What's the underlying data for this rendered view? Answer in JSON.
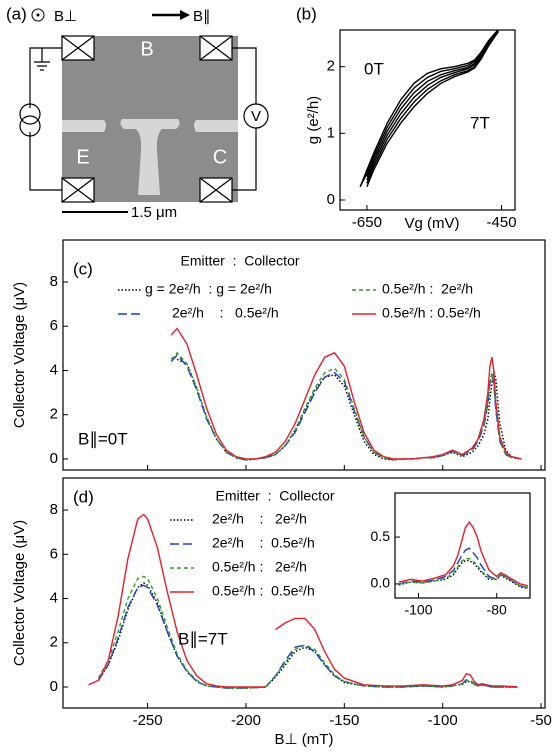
{
  "panel_a": {
    "panel_label": "(a)",
    "field_perp": "B⊥",
    "field_par": "B∥",
    "region_labels": [
      "B",
      "E",
      "C"
    ],
    "voltmeter": "V",
    "scale_bar": "1.5 μm"
  },
  "chart_data": [
    {
      "type": "line",
      "panel_label": "(b)",
      "xlabel": "Vg (mV)",
      "ylabel": "g (e²/h)",
      "annotations": [
        "0T",
        "7T"
      ],
      "x": [
        -660,
        -650,
        -640,
        -620,
        -600,
        -580,
        -560,
        -540,
        -520,
        -500,
        -490,
        -480,
        -470,
        -460,
        -455
      ],
      "xlim": [
        -690,
        -430
      ],
      "xticks": [
        -650,
        -450
      ],
      "ylim": [
        -0.15,
        2.55
      ],
      "yticks": [
        0,
        1,
        2
      ],
      "series": [
        {
          "color": "#000000",
          "line_style": "solid",
          "values": [
            0.2,
            0.45,
            0.7,
            1.15,
            1.5,
            1.75,
            1.9,
            1.97,
            2.0,
            2.05,
            2.1,
            2.22,
            2.38,
            2.5,
            2.55
          ]
        },
        {
          "color": "#000000",
          "line_style": "solid",
          "values": [
            0.2,
            0.4,
            0.65,
            1.09,
            1.43,
            1.68,
            1.84,
            1.93,
            1.97,
            2.02,
            2.08,
            2.2,
            2.36,
            2.49,
            2.55
          ]
        },
        {
          "color": "#000000",
          "line_style": "solid",
          "values": [
            null,
            0.35,
            0.6,
            1.03,
            1.36,
            1.61,
            1.78,
            1.88,
            1.94,
            1.99,
            2.05,
            2.18,
            2.35,
            2.48,
            2.54
          ]
        },
        {
          "color": "#000000",
          "line_style": "solid",
          "values": [
            null,
            0.3,
            0.55,
            0.97,
            1.29,
            1.54,
            1.72,
            1.84,
            1.91,
            1.97,
            2.03,
            2.16,
            2.33,
            2.47,
            2.53
          ]
        },
        {
          "color": "#000000",
          "line_style": "solid",
          "values": [
            null,
            0.25,
            0.5,
            0.91,
            1.22,
            1.47,
            1.66,
            1.79,
            1.88,
            1.94,
            2.0,
            2.14,
            2.31,
            2.46,
            2.52
          ]
        },
        {
          "color": "#000000",
          "line_style": "solid",
          "values": [
            null,
            0.2,
            0.45,
            0.85,
            1.15,
            1.4,
            1.6,
            1.75,
            1.85,
            1.92,
            1.98,
            2.12,
            2.3,
            2.45,
            2.52
          ]
        }
      ]
    },
    {
      "type": "line",
      "panel_label": "(c)",
      "ylabel": "Collector Voltage (μV)",
      "legend_title": "Emitter  :  Collector",
      "annotations": [
        "B∥=0T"
      ],
      "x": [
        -238,
        -235,
        -230,
        -225,
        -220,
        -215,
        -210,
        -205,
        -200,
        -195,
        -190,
        -185,
        -180,
        -175,
        -170,
        -165,
        -160,
        -155,
        -150,
        -145,
        -140,
        -135,
        -130,
        -125,
        -120,
        -115,
        -110,
        -105,
        -100,
        -95,
        -90,
        -85,
        -82,
        -79,
        -77,
        -76,
        -75,
        -74,
        -73,
        -71,
        -68,
        -65,
        -60
      ],
      "xlim": [
        -293,
        -48
      ],
      "xticks": [
        -250,
        -200,
        -150,
        -100,
        -50
      ],
      "xtick_labels": false,
      "ylim": [
        -0.5,
        9.9
      ],
      "yticks": [
        0,
        2,
        4,
        6,
        8
      ],
      "series": [
        {
          "name": "g = 2e²/h  : g = 2e²/h",
          "color": "#000000",
          "line_style": "dotted",
          "values": [
            null,
            4.5,
            4.3,
            3.2,
            1.9,
            0.9,
            0.3,
            0.05,
            -0.05,
            0.0,
            0.05,
            0.2,
            0.6,
            1.3,
            2.2,
            3.1,
            3.7,
            3.8,
            3.3,
            2.0,
            0.8,
            0.2,
            0.0,
            -0.05,
            0.0,
            0.0,
            0.05,
            0.05,
            0.15,
            0.3,
            0.1,
            0.3,
            0.6,
            1.1,
            1.8,
            2.7,
            3.4,
            4.0,
            3.6,
            1.6,
            0.4,
            0.1,
            0.0
          ]
        },
        {
          "name": "2e²/h    :   0.5e²/h",
          "color": "#1f3fcf",
          "line_style": "long-dashed",
          "values": [
            4.4,
            4.7,
            4.2,
            3.1,
            1.8,
            0.9,
            0.3,
            0.05,
            -0.05,
            0.0,
            0.05,
            0.2,
            0.6,
            1.2,
            2.1,
            3.0,
            3.7,
            3.9,
            3.5,
            2.2,
            1.0,
            0.3,
            0.05,
            -0.05,
            0.0,
            0.0,
            0.05,
            0.05,
            0.15,
            0.35,
            0.15,
            0.4,
            0.8,
            1.5,
            2.5,
            3.4,
            3.8,
            3.4,
            2.2,
            0.8,
            0.2,
            0.05,
            0.0
          ]
        },
        {
          "name": "0.5e²/h :  2e²/h",
          "color": "#2ca02c",
          "line_style": "dashed",
          "values": [
            4.5,
            4.8,
            4.3,
            3.2,
            1.9,
            0.9,
            0.3,
            0.05,
            -0.05,
            0.0,
            0.05,
            0.2,
            0.6,
            1.3,
            2.3,
            3.2,
            3.9,
            4.1,
            3.6,
            2.3,
            1.0,
            0.3,
            0.05,
            -0.05,
            0.0,
            0.0,
            0.05,
            0.05,
            0.15,
            0.35,
            0.15,
            0.45,
            0.85,
            1.6,
            2.6,
            3.5,
            3.9,
            3.5,
            2.3,
            0.8,
            0.2,
            0.05,
            0.0
          ]
        },
        {
          "name": "0.5e²/h : 0.5e²/h",
          "color": "#e8202a",
          "line_style": "solid",
          "values": [
            5.6,
            5.9,
            5.2,
            3.8,
            2.3,
            1.1,
            0.4,
            0.1,
            0.0,
            0.0,
            0.1,
            0.3,
            0.8,
            1.6,
            2.7,
            3.8,
            4.6,
            4.8,
            4.2,
            2.6,
            1.2,
            0.4,
            0.1,
            0.0,
            0.0,
            0.0,
            0.05,
            0.1,
            0.2,
            0.4,
            0.2,
            0.5,
            0.9,
            1.8,
            3.0,
            4.2,
            4.6,
            4.0,
            2.6,
            1.0,
            0.3,
            0.1,
            0.0
          ]
        }
      ]
    },
    {
      "type": "line",
      "panel_label": "(d)",
      "xlabel": "B⊥ (mT)",
      "ylabel": "Collector Voltage (μV)",
      "legend_title": "Emitter  :  Collector",
      "annotations": [
        "B∥=7T"
      ],
      "x": [
        -280,
        -275,
        -270,
        -265,
        -260,
        -255,
        -252,
        -250,
        -245,
        -240,
        -235,
        -230,
        -225,
        -220,
        -215,
        -210,
        -200,
        -190,
        -186,
        -185,
        -180,
        -175,
        -170,
        -165,
        -160,
        -155,
        -150,
        -140,
        -130,
        -120,
        -110,
        -100,
        -95,
        -90,
        -88,
        -86,
        -84,
        -82,
        -80,
        -75,
        -70,
        -62
      ],
      "xlim": [
        -293,
        -48
      ],
      "xticks": [
        -250,
        -200,
        -150,
        -100,
        -50
      ],
      "ylim": [
        -0.95,
        9.45
      ],
      "yticks": [
        0,
        2,
        4,
        6,
        8
      ],
      "series": [
        {
          "name": "2e²/h    :   2e²/h",
          "color": "#000000",
          "line_style": "dotted",
          "values": [
            null,
            0.3,
            1.0,
            2.1,
            3.5,
            4.5,
            4.7,
            4.6,
            3.8,
            2.5,
            1.4,
            0.7,
            0.25,
            0.05,
            0.0,
            -0.05,
            -0.05,
            0.0,
            0.35,
            0.45,
            1.0,
            1.6,
            1.8,
            1.6,
            1.0,
            0.5,
            0.2,
            0.05,
            0.0,
            0.0,
            0.05,
            0.0,
            0.05,
            0.12,
            0.25,
            0.24,
            0.12,
            0.05,
            0.1,
            0.0,
            0.0,
            0.0
          ]
        },
        {
          "name": "2e²/h    :  0.5e²/h",
          "color": "#1f3fcf",
          "line_style": "long-dashed",
          "values": [
            null,
            0.3,
            1.0,
            2.2,
            3.6,
            4.5,
            4.6,
            4.5,
            3.7,
            2.5,
            1.4,
            0.7,
            0.25,
            0.05,
            0.0,
            -0.05,
            -0.05,
            0.0,
            0.4,
            0.5,
            1.2,
            1.8,
            1.9,
            1.6,
            1.0,
            0.5,
            0.25,
            0.05,
            0.0,
            0.0,
            0.05,
            0.0,
            0.05,
            0.15,
            0.33,
            0.3,
            0.15,
            0.05,
            0.1,
            0.0,
            0.0,
            0.0
          ]
        },
        {
          "name": "0.5e²/h :   2e²/h",
          "color": "#2ca02c",
          "line_style": "dashed",
          "values": [
            null,
            0.4,
            1.2,
            2.5,
            4.0,
            4.9,
            5.0,
            4.9,
            4.0,
            2.7,
            1.5,
            0.75,
            0.3,
            0.05,
            0.0,
            -0.05,
            -0.05,
            0.0,
            0.4,
            0.5,
            1.1,
            1.7,
            1.9,
            1.7,
            1.1,
            0.55,
            0.25,
            0.05,
            0.0,
            0.0,
            0.05,
            0.0,
            0.05,
            0.15,
            0.28,
            0.26,
            0.12,
            0.05,
            0.1,
            0.0,
            0.0,
            0.0
          ]
        },
        {
          "name": "0.5e²/h :  0.5e²/h",
          "color": "#e8202a",
          "line_style": "solid",
          "values": [
            0.1,
            0.3,
            1.2,
            3.2,
            5.8,
            7.6,
            7.8,
            7.6,
            6.3,
            4.3,
            2.5,
            1.2,
            0.5,
            0.15,
            0.05,
            0.0,
            0.0,
            0.0,
            null,
            2.6,
            2.9,
            3.1,
            3.1,
            2.6,
            1.6,
            0.8,
            0.4,
            0.1,
            0.05,
            0.05,
            0.1,
            0.05,
            0.1,
            0.3,
            0.6,
            0.55,
            0.25,
            0.1,
            0.15,
            0.05,
            0.05,
            0.0
          ]
        }
      ]
    },
    {
      "type": "line",
      "x": [
        -105,
        -102,
        -99,
        -96,
        -93,
        -91,
        -90,
        -89,
        -88,
        -87,
        -86,
        -85,
        -84,
        -82,
        -80,
        -79,
        -78,
        -76,
        -74,
        -72
      ],
      "xlim": [
        -106,
        -71.5
      ],
      "xticks": [
        -100,
        -80
      ],
      "ylim": [
        -0.15,
        0.97
      ],
      "yticks": [
        {
          "value": 0,
          "label": "0.0"
        },
        0.5
      ],
      "series": [
        {
          "color": "#000000",
          "line_style": "dotted",
          "values": [
            -0.01,
            0.02,
            0.01,
            0.03,
            0.05,
            0.1,
            0.16,
            0.22,
            0.25,
            0.25,
            0.22,
            0.18,
            0.13,
            0.05,
            0.05,
            0.09,
            0.07,
            0.02,
            -0.03,
            -0.05
          ]
        },
        {
          "color": "#1f3fcf",
          "line_style": "long-dashed",
          "values": [
            0.0,
            0.03,
            0.02,
            0.04,
            0.08,
            0.15,
            0.22,
            0.3,
            0.36,
            0.38,
            0.33,
            0.28,
            0.2,
            0.08,
            0.05,
            0.1,
            0.08,
            0.03,
            -0.02,
            -0.04
          ]
        },
        {
          "color": "#2ca02c",
          "line_style": "dashed",
          "values": [
            0.0,
            0.02,
            0.01,
            0.03,
            0.06,
            0.12,
            0.18,
            0.24,
            0.27,
            0.27,
            0.24,
            0.2,
            0.14,
            0.06,
            0.05,
            0.1,
            0.08,
            0.03,
            -0.02,
            -0.04
          ]
        },
        {
          "color": "#e8202a",
          "line_style": "solid",
          "values": [
            0.02,
            0.05,
            0.03,
            0.06,
            0.1,
            0.2,
            0.3,
            0.45,
            0.6,
            0.66,
            0.6,
            0.5,
            0.35,
            0.15,
            0.08,
            0.12,
            0.1,
            0.05,
            0.0,
            -0.02
          ]
        }
      ]
    }
  ]
}
